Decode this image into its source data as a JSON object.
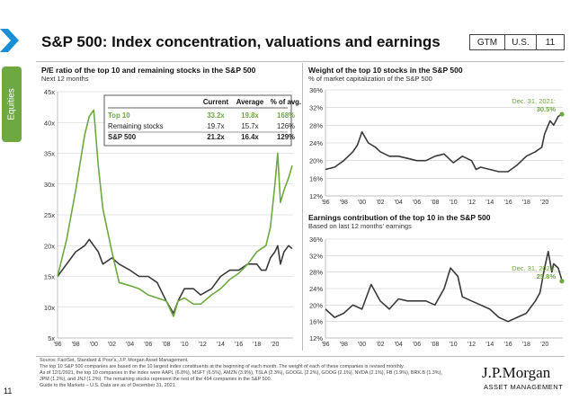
{
  "header": {
    "title": "S&P 500: Index concentration, valuations and earnings",
    "gtm": "GTM",
    "region": "U.S.",
    "page": "11"
  },
  "side_tab": "Equities",
  "page_number": "11",
  "footnotes": [
    "Source: FactSet, Standard & Poor's, J.P. Morgan Asset Management.",
    "The top 10 S&P 500 companies are based on the 10 largest index constituents at the beginning of each month. The weight of each of these companies is revised monthly.",
    "As of 12/1/2021, the top 10 companies in the index were AAPL (6.8%), MSFT (6.5%), AMZN (3.9%), TSLA (2.3%), GOOGL (2.2%), GOOG (2.1%), NVDA (2.1%), FB (1.9%), BRK.B (1.3%),",
    "JPM (1.2%), and JNJ (1.2%). The remaining stocks represent the rest of the 494 companies in the S&P 500.",
    "Guide to the Markets – U.S. Data are as of December 31, 2021."
  ],
  "logo": {
    "line1": "J.P.Morgan",
    "line2": "ASSET MANAGEMENT"
  },
  "colors": {
    "accent_green": "#6ea840",
    "dark_line": "#3a3a3a",
    "grid": "#cccccc"
  },
  "chart_data": [
    {
      "type": "line",
      "title": "P/E ratio of the top 10 and remaining stocks in the S&P 500",
      "subtitle": "Next 12 months",
      "x": [
        1996,
        1997,
        1998,
        1999,
        1999.5,
        2000,
        2000.5,
        2001,
        2002,
        2002.8,
        2004,
        2005,
        2006,
        2007,
        2008,
        2008.8,
        2009.3,
        2010,
        2011,
        2011.8,
        2013,
        2014,
        2015,
        2016,
        2017,
        2018,
        2018.5,
        2019,
        2019.5,
        2020,
        2020.3,
        2020.6,
        2021,
        2021.5,
        2021.9
      ],
      "xticks": [
        "'96",
        "'98",
        "'00",
        "'02",
        "'04",
        "'06",
        "'08",
        "'10",
        "'12",
        "'14",
        "'16",
        "'18",
        "'20"
      ],
      "ylim": [
        5,
        45
      ],
      "yticks": [
        "5x",
        "10x",
        "15x",
        "20x",
        "25x",
        "30x",
        "35x",
        "40x",
        "45x"
      ],
      "series": [
        {
          "name": "Top 10",
          "color": "#6ea840",
          "values": [
            15,
            21,
            29,
            38,
            41,
            42,
            33,
            26,
            19,
            14,
            13.5,
            13,
            12,
            11.5,
            11,
            8.5,
            11,
            11.5,
            10.5,
            10.5,
            12,
            13,
            14.5,
            15.5,
            17,
            19,
            19.5,
            20,
            23,
            30,
            35,
            27,
            29,
            31,
            33
          ]
        },
        {
          "name": "Remaining stocks",
          "color": "#3a3a3a",
          "values": [
            15,
            17,
            19,
            20,
            21,
            20,
            19,
            17,
            18,
            17,
            16,
            15,
            15,
            14,
            11,
            9,
            11,
            13,
            13,
            12,
            13,
            15,
            16,
            16,
            17,
            17,
            16,
            16,
            18,
            19,
            20,
            17,
            19,
            20,
            19.5
          ]
        }
      ],
      "table": {
        "columns": [
          "",
          "Current",
          "Average",
          "% of avg."
        ],
        "rows": [
          [
            "Top 10",
            "33.2x",
            "19.8x",
            "168%"
          ],
          [
            "Remaining stocks",
            "19.7x",
            "15.7x",
            "126%"
          ],
          [
            "S&P 500",
            "21.2x",
            "16.4x",
            "129%"
          ]
        ]
      }
    },
    {
      "type": "line",
      "title": "Weight of the top 10 stocks in the S&P 500",
      "subtitle": "% of market capitalization of the S&P 500",
      "x": [
        1996,
        1997,
        1998,
        1999,
        1999.5,
        2000,
        2000.7,
        2001.5,
        2002,
        2003,
        2004,
        2005,
        2006,
        2007,
        2008,
        2009,
        2010,
        2011,
        2012,
        2012.5,
        2013,
        2014,
        2015,
        2016,
        2017,
        2018,
        2019,
        2019.7,
        2020,
        2020.6,
        2021,
        2021.5,
        2021.9
      ],
      "xticks": [
        "'96",
        "'98",
        "'00",
        "'02",
        "'04",
        "'06",
        "'08",
        "'10",
        "'12",
        "'14",
        "'16",
        "'18",
        "'20"
      ],
      "ylim": [
        12,
        36
      ],
      "yticks": [
        "12%",
        "16%",
        "20%",
        "24%",
        "28%",
        "32%",
        "36%"
      ],
      "series": [
        {
          "name": "",
          "color": "#3a3a3a",
          "values": [
            18,
            18.5,
            20,
            22,
            23.5,
            26.5,
            24,
            23,
            22,
            21,
            21,
            20.5,
            20,
            20,
            21,
            21.5,
            19.5,
            21,
            20,
            18,
            18.5,
            18,
            17.5,
            17.5,
            19,
            21,
            22,
            23,
            26,
            29,
            28,
            30,
            30.5
          ]
        }
      ],
      "annotation": {
        "label": "Dec. 31, 2021:",
        "value": "30.5%",
        "x": 2021.9,
        "y": 30.5
      }
    },
    {
      "type": "line",
      "title": "Earnings contribution of the top 10 in the S&P 500",
      "subtitle": "Based on last 12 months' earnings",
      "x": [
        1996,
        1997,
        1998,
        1999,
        2000,
        2001,
        2002,
        2003,
        2004,
        2005,
        2006,
        2007,
        2008,
        2009,
        2009.7,
        2010.5,
        2011,
        2012,
        2013,
        2014,
        2015,
        2016,
        2017,
        2018,
        2019,
        2019.5,
        2020,
        2020.4,
        2020.8,
        2021,
        2021.5,
        2021.9
      ],
      "xticks": [
        "'96",
        "'98",
        "'00",
        "'02",
        "'04",
        "'06",
        "'08",
        "'10",
        "'12",
        "'14",
        "'16",
        "'18",
        "'20"
      ],
      "ylim": [
        12,
        36
      ],
      "yticks": [
        "12%",
        "16%",
        "20%",
        "24%",
        "28%",
        "32%",
        "36%"
      ],
      "series": [
        {
          "name": "",
          "color": "#3a3a3a",
          "values": [
            19,
            17,
            18,
            20,
            19,
            25,
            21,
            19,
            21.5,
            21,
            21,
            21,
            20,
            24,
            29,
            27,
            22,
            21,
            20,
            19,
            17,
            16,
            17,
            18,
            21,
            23,
            29,
            33,
            28,
            30,
            29,
            26
          ]
        }
      ],
      "annotation": {
        "label": "Dec. 31, 2021:",
        "value": "25.8%",
        "x": 2021.9,
        "y": 25.8
      }
    }
  ]
}
